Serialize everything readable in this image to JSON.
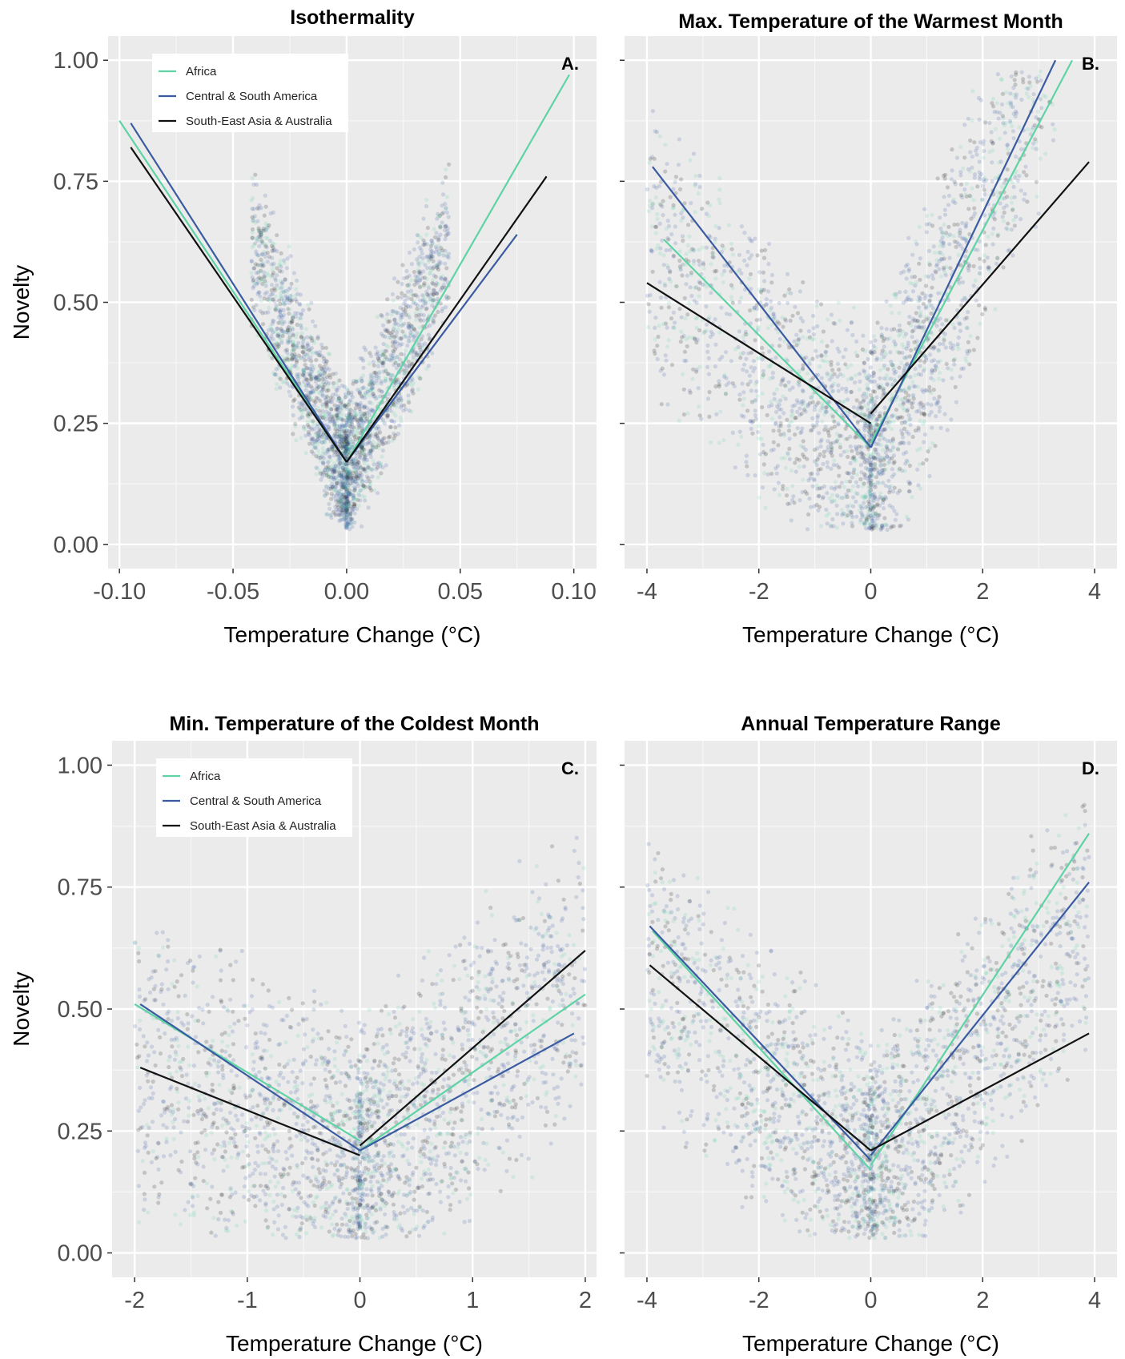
{
  "colors": {
    "panel_bg": "#EBEBEB",
    "grid_major": "#FFFFFF",
    "tick_text": "#4D4D4D",
    "africa": "#5FD3A5",
    "central_south_america": "#3A5BA0",
    "se_asia_australia": "#111111"
  },
  "chart_data": [
    {
      "type": "scatter",
      "panel_tag": "A.",
      "title": "Isothermality",
      "xlabel": "Temperature Change (°C)",
      "ylabel": "Novelty",
      "xlim": [
        -0.105,
        0.11
      ],
      "ylim": [
        -0.05,
        1.05
      ],
      "xticks": [
        -0.1,
        -0.05,
        0.0,
        0.05,
        0.1
      ],
      "xtick_labels": [
        "-0.10",
        "-0.05",
        "0.00",
        "0.05",
        "0.10"
      ],
      "yticks": [
        0,
        0.25,
        0.5,
        0.75,
        1.0
      ],
      "ytick_labels": [
        "0.00",
        "0.25",
        "0.50",
        "0.75",
        "1.00"
      ],
      "show_ytick_labels": true,
      "legend": true,
      "legend_position": "top-left",
      "cloud": {
        "xmin": -0.042,
        "xmax": 0.045,
        "base": 0.04,
        "slope_left": 11.5,
        "slope_right": 11.0,
        "spread": 0.12
      },
      "series": [
        {
          "name": "Africa",
          "color_key": "africa",
          "segments": [
            [
              [
                -0.1,
                0.875
              ],
              [
                0.0,
                0.17
              ]
            ],
            [
              [
                0.0,
                0.17
              ],
              [
                0.098,
                0.97
              ]
            ]
          ]
        },
        {
          "name": "Central & South America",
          "color_key": "central_south_america",
          "segments": [
            [
              [
                -0.095,
                0.87
              ],
              [
                0.0,
                0.17
              ]
            ],
            [
              [
                0.0,
                0.17
              ],
              [
                0.075,
                0.64
              ]
            ]
          ]
        },
        {
          "name": "South-East Asia & Australia",
          "color_key": "se_asia_australia",
          "segments": [
            [
              [
                -0.095,
                0.82
              ],
              [
                0.0,
                0.17
              ]
            ],
            [
              [
                0.0,
                0.17
              ],
              [
                0.088,
                0.76
              ]
            ]
          ]
        }
      ]
    },
    {
      "type": "scatter",
      "panel_tag": "B.",
      "title": "Max. Temperature of the Warmest Month",
      "xlabel": "Temperature Change (°C)",
      "ylabel": "",
      "xlim": [
        -4.4,
        4.4
      ],
      "ylim": [
        -0.05,
        1.05
      ],
      "xticks": [
        -4,
        -2,
        0,
        2,
        4
      ],
      "xtick_labels": [
        "-4",
        "-2",
        "0",
        "2",
        "4"
      ],
      "yticks": [
        0,
        0.25,
        0.5,
        0.75,
        1.0
      ],
      "ytick_labels": [
        "0.00",
        "0.25",
        "0.50",
        "0.75",
        "1.00"
      ],
      "show_ytick_labels": false,
      "legend": false,
      "cloud": {
        "xmin": -4.0,
        "xmax": 3.3,
        "base": 0.04,
        "slope_left": 0.12,
        "slope_right": 0.28,
        "spread": 0.2
      },
      "series": [
        {
          "name": "Africa",
          "color_key": "africa",
          "segments": [
            [
              [
                -3.7,
                0.63
              ],
              [
                0.0,
                0.2
              ]
            ],
            [
              [
                0.0,
                0.21
              ],
              [
                3.6,
                1.0
              ]
            ]
          ]
        },
        {
          "name": "Central & South America",
          "color_key": "central_south_america",
          "segments": [
            [
              [
                -3.9,
                0.78
              ],
              [
                0.0,
                0.2
              ]
            ],
            [
              [
                0.0,
                0.2
              ],
              [
                3.3,
                1.0
              ]
            ]
          ]
        },
        {
          "name": "South-East Asia & Australia",
          "color_key": "se_asia_australia",
          "segments": [
            [
              [
                -4.0,
                0.54
              ],
              [
                0.0,
                0.25
              ]
            ],
            [
              [
                0.0,
                0.27
              ],
              [
                3.9,
                0.79
              ]
            ]
          ]
        }
      ]
    },
    {
      "type": "scatter",
      "panel_tag": "C.",
      "title": "Min. Temperature of the Coldest Month",
      "xlabel": "Temperature Change (°C)",
      "ylabel": "Novelty",
      "xlim": [
        -2.2,
        2.1
      ],
      "ylim": [
        -0.05,
        1.05
      ],
      "xticks": [
        -2,
        -1,
        0,
        1,
        2
      ],
      "xtick_labels": [
        "-2",
        "-1",
        "0",
        "1",
        "2"
      ],
      "yticks": [
        0,
        0.25,
        0.5,
        0.75,
        1.0
      ],
      "ytick_labels": [
        "0.00",
        "0.25",
        "0.50",
        "0.75",
        "1.00"
      ],
      "show_ytick_labels": true,
      "legend": true,
      "legend_position": "top-left",
      "cloud": {
        "xmin": -2.0,
        "xmax": 2.0,
        "base": 0.05,
        "slope_left": 0.12,
        "slope_right": 0.22,
        "spread": 0.22
      },
      "series": [
        {
          "name": "Africa",
          "color_key": "africa",
          "segments": [
            [
              [
                -2.0,
                0.51
              ],
              [
                0.0,
                0.23
              ]
            ],
            [
              [
                0.0,
                0.21
              ],
              [
                2.0,
                0.53
              ]
            ]
          ]
        },
        {
          "name": "Central & South America",
          "color_key": "central_south_america",
          "segments": [
            [
              [
                -1.95,
                0.51
              ],
              [
                0.0,
                0.21
              ]
            ],
            [
              [
                0.0,
                0.21
              ],
              [
                1.9,
                0.45
              ]
            ]
          ]
        },
        {
          "name": "South-East Asia & Australia",
          "color_key": "se_asia_australia",
          "segments": [
            [
              [
                -1.95,
                0.38
              ],
              [
                0.0,
                0.2
              ]
            ],
            [
              [
                0.0,
                0.22
              ],
              [
                2.0,
                0.62
              ]
            ]
          ]
        }
      ]
    },
    {
      "type": "scatter",
      "panel_tag": "D.",
      "title": "Annual Temperature Range",
      "xlabel": "Temperature Change (°C)",
      "ylabel": "",
      "xlim": [
        -4.4,
        4.4
      ],
      "ylim": [
        -0.05,
        1.05
      ],
      "xticks": [
        -4,
        -2,
        0,
        2,
        4
      ],
      "xtick_labels": [
        "-4",
        "-2",
        "0",
        "2",
        "4"
      ],
      "yticks": [
        0,
        0.25,
        0.5,
        0.75,
        1.0
      ],
      "ytick_labels": [
        "0.00",
        "0.25",
        "0.50",
        "0.75",
        "1.00"
      ],
      "show_ytick_labels": false,
      "legend": false,
      "cloud": {
        "xmin": -4.0,
        "xmax": 3.9,
        "base": 0.04,
        "slope_left": 0.11,
        "slope_right": 0.14,
        "spread": 0.2
      },
      "series": [
        {
          "name": "Africa",
          "color_key": "africa",
          "segments": [
            [
              [
                -3.9,
                0.66
              ],
              [
                0.0,
                0.17
              ]
            ],
            [
              [
                0.0,
                0.18
              ],
              [
                3.9,
                0.86
              ]
            ]
          ]
        },
        {
          "name": "Central & South America",
          "color_key": "central_south_america",
          "segments": [
            [
              [
                -3.95,
                0.67
              ],
              [
                0.0,
                0.19
              ]
            ],
            [
              [
                0.0,
                0.2
              ],
              [
                3.9,
                0.76
              ]
            ]
          ]
        },
        {
          "name": "South-East Asia & Australia",
          "color_key": "se_asia_australia",
          "segments": [
            [
              [
                -3.95,
                0.59
              ],
              [
                0.0,
                0.21
              ]
            ],
            [
              [
                0.0,
                0.21
              ],
              [
                3.9,
                0.45
              ]
            ]
          ]
        }
      ]
    }
  ]
}
